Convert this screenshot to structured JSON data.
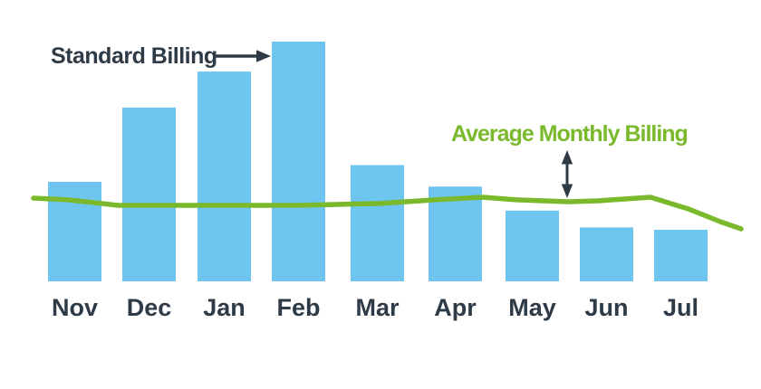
{
  "canvas": {
    "background": "#FFFFFF"
  },
  "colors": {
    "bar": "#6EC5F0",
    "line": "#7AB82C",
    "ink": "#2E3B47"
  },
  "annotations": {
    "standard_billing": {
      "label": "Standard Billing",
      "arrow": "right-arrow"
    },
    "average_monthly_billing": {
      "label": "Average Monthly Billing",
      "arrow": "double-vertical-arrow"
    }
  },
  "chart_data": {
    "type": "bar",
    "title": "",
    "categories": [
      "Nov",
      "Dec",
      "Jan",
      "Feb",
      "Mar",
      "Apr",
      "May",
      "Jun",
      "Jul"
    ],
    "series": [
      {
        "name": "Standard Billing",
        "type": "bar",
        "color": "#6EC5F0",
        "values": [
          41.5,
          72.5,
          87.5,
          100,
          48.5,
          39.5,
          29.5,
          22.5,
          21.5
        ]
      },
      {
        "name": "Average Monthly Billing",
        "type": "line",
        "color": "#7AB82C",
        "values": [
          33.9,
          31.7,
          31.7,
          31.7,
          32.5,
          34.5,
          33.6,
          33.7,
          31.2
        ],
        "points_format": "[x_px, value]",
        "points": [
          [
            37,
            34.7
          ],
          [
            75,
            34.0
          ],
          [
            112,
            32.5
          ],
          [
            130,
            31.7
          ],
          [
            250,
            31.7
          ],
          [
            330,
            31.7
          ],
          [
            420,
            32.5
          ],
          [
            480,
            34.0
          ],
          [
            533,
            35.1
          ],
          [
            570,
            34.0
          ],
          [
            627,
            33.2
          ],
          [
            660,
            33.6
          ],
          [
            718,
            35.1
          ],
          [
            760,
            30.2
          ],
          [
            795,
            24.9
          ],
          [
            818,
            21.9
          ]
        ]
      }
    ],
    "xlabel": "",
    "ylabel": "",
    "ylim": [
      0,
      100
    ],
    "grid": false,
    "axes_shown": false,
    "units": "relative (tallest bar = 100; no numeric axis shown)",
    "legend_position": "annotations-on-chart"
  }
}
